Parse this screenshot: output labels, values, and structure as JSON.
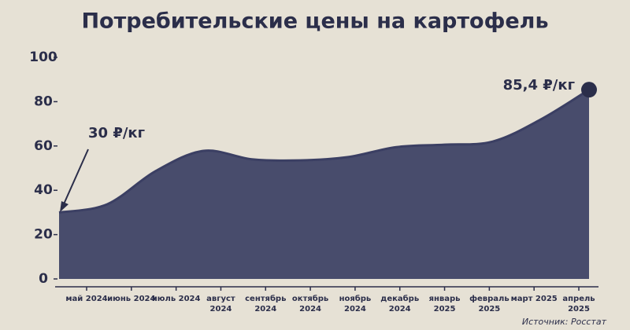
{
  "chart_data": {
    "type": "area",
    "title": "Потребительские цены на картофель",
    "categories": [
      "май 2024",
      "июнь 2024",
      "июль 2024",
      "август 2024",
      "сентябрь 2024",
      "октябрь 2024",
      "ноябрь 2024",
      "декабрь 2024",
      "январь 2025",
      "февраль 2025",
      "март 2025",
      "апрель 2025"
    ],
    "values": [
      30,
      33.7,
      48.6,
      57.8,
      54,
      53.5,
      55,
      59.5,
      60.6,
      62,
      72,
      85.4
    ],
    "color": "#3b3f63",
    "ylim": [
      0,
      100
    ],
    "yticks": [
      0,
      20,
      40,
      60,
      80,
      100
    ],
    "annotations": [
      "30 ₽/кг",
      "85,4 ₽/кг"
    ],
    "source": "Источник: Росстат"
  }
}
